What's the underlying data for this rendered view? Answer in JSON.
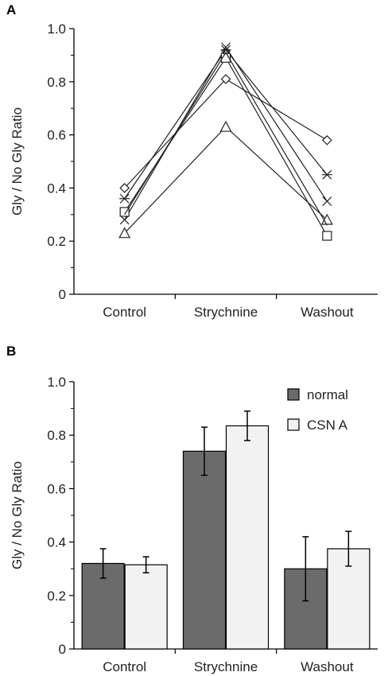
{
  "chart_data": [
    {
      "panel": "A",
      "type": "line",
      "categories": [
        "Control",
        "Strychnine",
        "Washout"
      ],
      "ylabel": "Gly / No Gly Ratio",
      "ylim": [
        0,
        1.0
      ],
      "yticks": [
        "0",
        "0.2",
        "0.4",
        "0.6",
        "0.8",
        "1.0"
      ],
      "grid": false,
      "series": [
        {
          "marker": "diamond",
          "values": [
            0.4,
            0.81,
            0.58
          ]
        },
        {
          "marker": "asterisk",
          "values": [
            0.36,
            0.92,
            0.45
          ]
        },
        {
          "marker": "x",
          "values": [
            0.28,
            0.93,
            0.35
          ]
        },
        {
          "marker": "square",
          "values": [
            0.31,
            0.89,
            0.22
          ]
        },
        {
          "marker": "triangle",
          "values": [
            0.23,
            0.63,
            0.28
          ]
        },
        {
          "marker": "none",
          "values": [
            0.3,
            0.91,
            0.26
          ]
        }
      ]
    },
    {
      "panel": "B",
      "type": "bar",
      "categories": [
        "Control",
        "Strychnine",
        "Washout"
      ],
      "ylabel": "Gly / No Gly Ratio",
      "ylim": [
        0,
        1.0
      ],
      "yticks": [
        "0",
        "0.2",
        "0.4",
        "0.6",
        "0.8",
        "1.0"
      ],
      "legend_placement": "top-right",
      "grid": false,
      "series": [
        {
          "name": "normal",
          "color": "#6b6b6b",
          "values": [
            0.32,
            0.74,
            0.3
          ],
          "errors": [
            0.055,
            0.09,
            0.12
          ]
        },
        {
          "name": "CSN A",
          "color": "#f2f2f2",
          "values": [
            0.315,
            0.835,
            0.375
          ],
          "errors": [
            0.03,
            0.055,
            0.065
          ]
        }
      ]
    }
  ]
}
